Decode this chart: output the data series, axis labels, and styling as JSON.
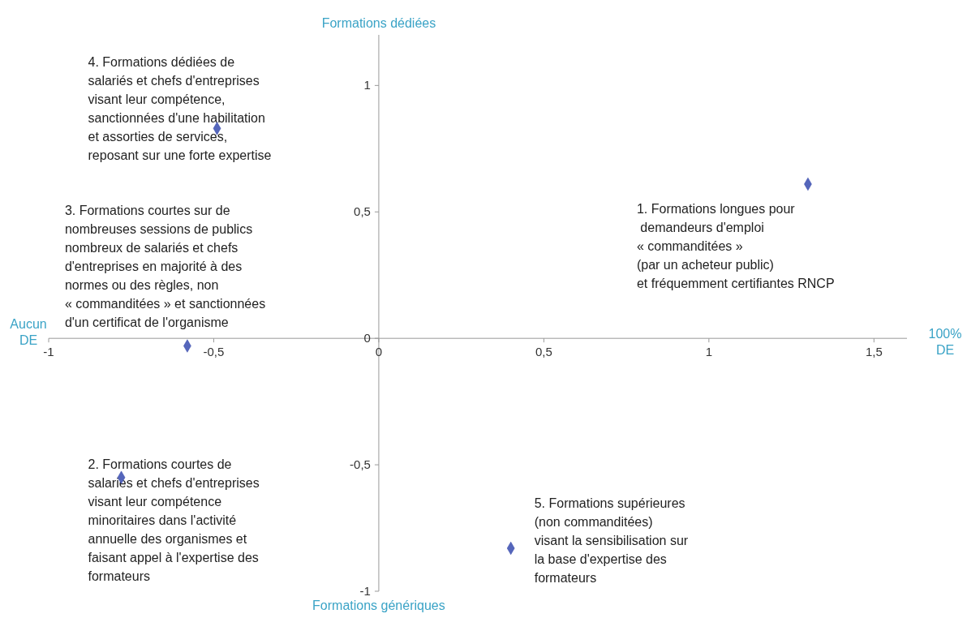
{
  "chart_data": {
    "type": "scatter",
    "x": [
      -0.78,
      -0.58,
      -0.49,
      0.4,
      1.3
    ],
    "series": [
      {
        "color": "#5566bb",
        "values": [
          -0.55,
          -0.03,
          0.83,
          -0.83,
          0.61
        ]
      }
    ],
    "marker": "diamond",
    "xlim": [
      -1,
      1.6
    ],
    "ylim": [
      -1,
      1.2
    ],
    "xticks": [
      -1,
      {
        "value": -0.5,
        "label": "-0,5"
      },
      0,
      {
        "value": 0.5,
        "label": "0,5"
      },
      1,
      {
        "value": 1.5,
        "label": "1,5"
      }
    ],
    "yticks": [
      {
        "value": -1,
        "label": "-1"
      },
      {
        "value": -0.5,
        "label": "-0,5"
      },
      0,
      {
        "value": 0.5,
        "label": "0,5"
      },
      1
    ],
    "annotations": [
      "Formations dédiées",
      "Formations génériques",
      "Aucun\nDE",
      "100%\nDE",
      {
        "text": "2. Formations courtes de\nsalariés et chefs d'entreprises\nvisant leur compétence\nminoritaires dans l'activité\nannuelle des organismes et\nfaisant appel à l'expertise des\nformateurs",
        "x": -0.78,
        "y": -0.55
      },
      {
        "text": "3. Formations courtes sur de\nnombreuses sessions de publics\nnombreux de salariés et chefs\nd'entreprises en majorité à des\nnormes ou des règles, non\n« commanditées » et sanctionnées\nd'un certificat de l'organisme",
        "x": -0.58,
        "y": -0.03
      },
      {
        "text": "4. Formations dédiées de\nsalariés et chefs d'entreprises\nvisant leur compétence,\nsanctionnées d'une habilitation\net assorties de services,\nreposant sur une forte expertise",
        "x": -0.49,
        "y": 0.83
      },
      {
        "text": "5. Formations supérieures\n(non commanditées)\nvisant la sensibilisation sur\nla base d'expertise des\nformateurs",
        "x": 0.4,
        "y": -0.83
      },
      {
        "text": "1. Formations longues pour\n demandeurs d'emploi\n« commanditées »\n(par un acheteur public)\net fréquemment certifiantes RNCP",
        "x": 1.3,
        "y": 0.61
      }
    ]
  }
}
